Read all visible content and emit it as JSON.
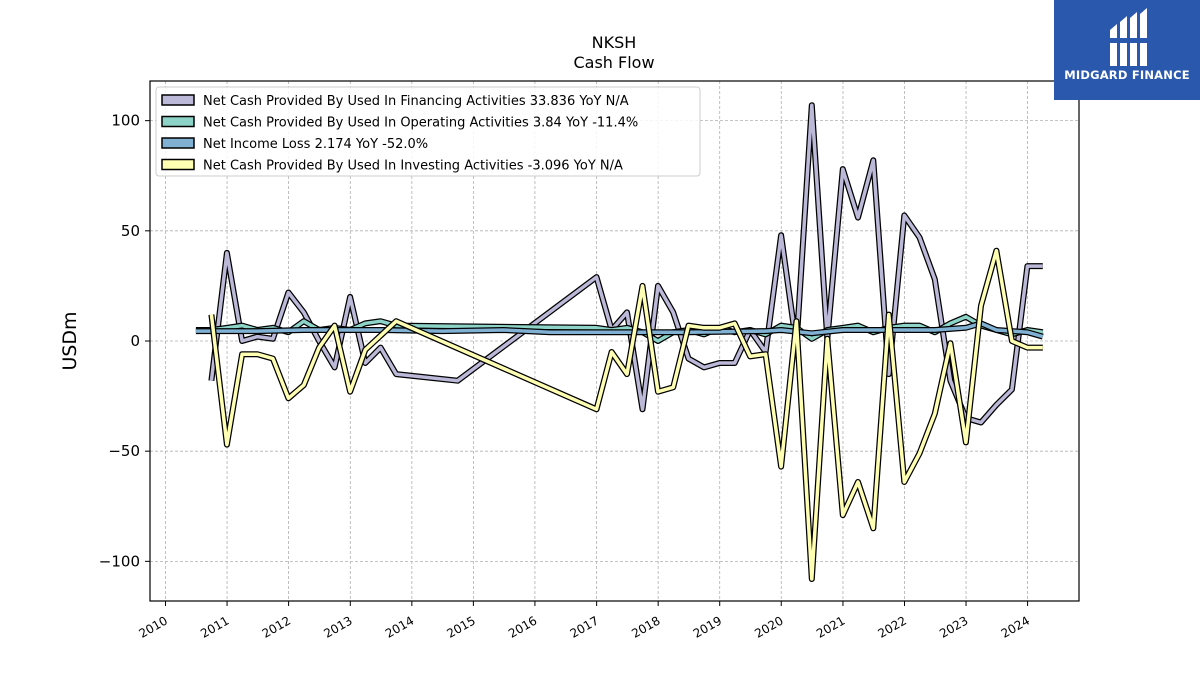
{
  "chart_data": {
    "type": "line",
    "title": "NKSH",
    "subtitle": "Cash Flow",
    "ylabel": "USDm",
    "xlabel": "",
    "x_axis": "date",
    "xlim": [
      "2009-10-01",
      "2024-11-01"
    ],
    "ylim": [
      -118,
      118
    ],
    "x_ticks": [
      "2010",
      "2011",
      "2012",
      "2013",
      "2014",
      "2015",
      "2016",
      "2017",
      "2018",
      "2019",
      "2020",
      "2021",
      "2022",
      "2023",
      "2024"
    ],
    "y_ticks": [
      100,
      50,
      0,
      -50,
      -100
    ],
    "y_tick_labels": [
      "100",
      "50",
      "0",
      "−50",
      "−100"
    ],
    "grid": true,
    "legend_position": "top-left",
    "series": [
      {
        "name": "Net Cash Provided By Used In Financing Activities",
        "legend_label": "Net Cash Provided By Used In Financing Activities  33.836 YoY N/A",
        "color": "#bcb8d8",
        "points": [
          [
            "2010-09-30",
            -18
          ],
          [
            "2010-12-31",
            40
          ],
          [
            "2011-03-31",
            0
          ],
          [
            "2011-06-30",
            2
          ],
          [
            "2011-09-30",
            1
          ],
          [
            "2011-12-31",
            22
          ],
          [
            "2012-03-31",
            13
          ],
          [
            "2012-06-30",
            0
          ],
          [
            "2012-09-30",
            -12
          ],
          [
            "2012-12-31",
            20
          ],
          [
            "2013-03-31",
            -10
          ],
          [
            "2013-06-30",
            -3
          ],
          [
            "2013-09-30",
            -15
          ],
          [
            "2014-09-30",
            -18
          ],
          [
            "2016-12-31",
            29
          ],
          [
            "2017-03-31",
            5
          ],
          [
            "2017-06-30",
            13
          ],
          [
            "2017-09-30",
            -31
          ],
          [
            "2017-12-31",
            25
          ],
          [
            "2018-03-31",
            13
          ],
          [
            "2018-06-30",
            -8
          ],
          [
            "2018-09-30",
            -12
          ],
          [
            "2018-12-31",
            -10
          ],
          [
            "2019-03-31",
            -10
          ],
          [
            "2019-06-30",
            5
          ],
          [
            "2019-09-30",
            -5
          ],
          [
            "2019-12-31",
            48
          ],
          [
            "2020-03-31",
            -2
          ],
          [
            "2020-06-30",
            107
          ],
          [
            "2020-09-30",
            1
          ],
          [
            "2020-12-31",
            78
          ],
          [
            "2021-03-31",
            56
          ],
          [
            "2021-06-30",
            82
          ],
          [
            "2021-09-30",
            -15
          ],
          [
            "2021-12-31",
            57
          ],
          [
            "2022-03-31",
            47
          ],
          [
            "2022-06-30",
            28
          ],
          [
            "2022-09-30",
            -18
          ],
          [
            "2022-12-31",
            -35
          ],
          [
            "2023-03-31",
            -37
          ],
          [
            "2023-06-30",
            -29
          ],
          [
            "2023-09-30",
            -22
          ],
          [
            "2023-12-31",
            34
          ],
          [
            "2024-03-31",
            34
          ]
        ]
      },
      {
        "name": "Net Cash Provided By Used In Operating Activities",
        "legend_label": "Net Cash Provided By Used In Operating Activities  3.84 YoY -11.4%",
        "color": "#8dd3c7",
        "points": [
          [
            "2010-06-30",
            5
          ],
          [
            "2010-09-30",
            5
          ],
          [
            "2010-12-31",
            6
          ],
          [
            "2011-03-31",
            7
          ],
          [
            "2011-06-30",
            5
          ],
          [
            "2011-09-30",
            6
          ],
          [
            "2011-12-31",
            4
          ],
          [
            "2012-03-31",
            9
          ],
          [
            "2012-06-30",
            5
          ],
          [
            "2012-09-30",
            6
          ],
          [
            "2012-12-31",
            5
          ],
          [
            "2013-03-31",
            8
          ],
          [
            "2013-06-30",
            9
          ],
          [
            "2013-09-30",
            7
          ],
          [
            "2016-12-31",
            6
          ],
          [
            "2017-03-31",
            5
          ],
          [
            "2017-06-30",
            6
          ],
          [
            "2017-09-30",
            4
          ],
          [
            "2017-12-31",
            0
          ],
          [
            "2018-03-31",
            4
          ],
          [
            "2018-06-30",
            5
          ],
          [
            "2018-09-30",
            3
          ],
          [
            "2018-12-31",
            6
          ],
          [
            "2019-03-31",
            4
          ],
          [
            "2019-06-30",
            5
          ],
          [
            "2019-09-30",
            3
          ],
          [
            "2019-12-31",
            7
          ],
          [
            "2020-03-31",
            6
          ],
          [
            "2020-06-30",
            1
          ],
          [
            "2020-09-30",
            5
          ],
          [
            "2020-12-31",
            6
          ],
          [
            "2021-03-31",
            7
          ],
          [
            "2021-06-30",
            4
          ],
          [
            "2021-09-30",
            6
          ],
          [
            "2021-12-31",
            7
          ],
          [
            "2022-03-31",
            7
          ],
          [
            "2022-06-30",
            4
          ],
          [
            "2022-09-30",
            8
          ],
          [
            "2022-12-31",
            11
          ],
          [
            "2023-03-31",
            7
          ],
          [
            "2023-06-30",
            5
          ],
          [
            "2023-09-30",
            3
          ],
          [
            "2023-12-31",
            5
          ],
          [
            "2024-03-31",
            4
          ]
        ]
      },
      {
        "name": "Net Income Loss",
        "legend_label": "Net Income Loss  2.174 YoY -52.0%",
        "color": "#80b1d3",
        "points": [
          [
            "2010-06-30",
            4.5
          ],
          [
            "2011-06-30",
            4.5
          ],
          [
            "2012-03-31",
            5
          ],
          [
            "2013-06-30",
            5
          ],
          [
            "2014-06-30",
            4.5
          ],
          [
            "2015-06-30",
            5
          ],
          [
            "2016-03-31",
            4
          ],
          [
            "2017-06-30",
            4
          ],
          [
            "2018-06-30",
            4
          ],
          [
            "2019-09-30",
            4.5
          ],
          [
            "2019-12-31",
            5
          ],
          [
            "2020-06-30",
            3.5
          ],
          [
            "2020-12-31",
            5
          ],
          [
            "2021-06-30",
            5
          ],
          [
            "2022-06-30",
            5
          ],
          [
            "2022-12-31",
            6
          ],
          [
            "2023-03-31",
            8
          ],
          [
            "2023-06-30",
            5
          ],
          [
            "2023-12-31",
            4
          ],
          [
            "2024-03-31",
            2
          ]
        ]
      },
      {
        "name": "Net Cash Provided By Used In Investing Activities",
        "legend_label": "Net Cash Provided By Used In Investing Activities  -3.096 YoY N/A",
        "color": "#ffffb3",
        "points": [
          [
            "2010-09-30",
            12
          ],
          [
            "2010-12-31",
            -47
          ],
          [
            "2011-03-31",
            -6
          ],
          [
            "2011-06-30",
            -6
          ],
          [
            "2011-09-30",
            -8
          ],
          [
            "2011-12-31",
            -26
          ],
          [
            "2012-03-31",
            -20
          ],
          [
            "2012-06-30",
            -3
          ],
          [
            "2012-09-30",
            7
          ],
          [
            "2012-12-31",
            -23
          ],
          [
            "2013-03-31",
            -4
          ],
          [
            "2013-09-30",
            9
          ],
          [
            "2016-12-31",
            -31
          ],
          [
            "2017-03-31",
            -5
          ],
          [
            "2017-06-30",
            -15
          ],
          [
            "2017-09-30",
            25
          ],
          [
            "2017-12-31",
            -23
          ],
          [
            "2018-03-31",
            -21
          ],
          [
            "2018-06-30",
            7
          ],
          [
            "2018-09-30",
            6
          ],
          [
            "2018-12-31",
            6
          ],
          [
            "2019-03-31",
            8
          ],
          [
            "2019-06-30",
            -7
          ],
          [
            "2019-09-30",
            -6
          ],
          [
            "2019-12-31",
            -57
          ],
          [
            "2020-03-31",
            9
          ],
          [
            "2020-06-30",
            -108
          ],
          [
            "2020-09-30",
            1
          ],
          [
            "2020-12-31",
            -79
          ],
          [
            "2021-03-31",
            -64
          ],
          [
            "2021-06-30",
            -85
          ],
          [
            "2021-09-30",
            12
          ],
          [
            "2021-12-31",
            -64
          ],
          [
            "2022-03-31",
            -51
          ],
          [
            "2022-06-30",
            -33
          ],
          [
            "2022-09-30",
            -1
          ],
          [
            "2022-12-31",
            -46
          ],
          [
            "2023-03-31",
            16
          ],
          [
            "2023-06-30",
            41
          ],
          [
            "2023-09-30",
            0
          ],
          [
            "2023-12-31",
            -3
          ],
          [
            "2024-03-31",
            -3
          ]
        ]
      }
    ]
  },
  "logo": {
    "text": "MIDGARD FINANCE",
    "background": "#2a58ad",
    "icon": "midgard-logo-icon"
  }
}
